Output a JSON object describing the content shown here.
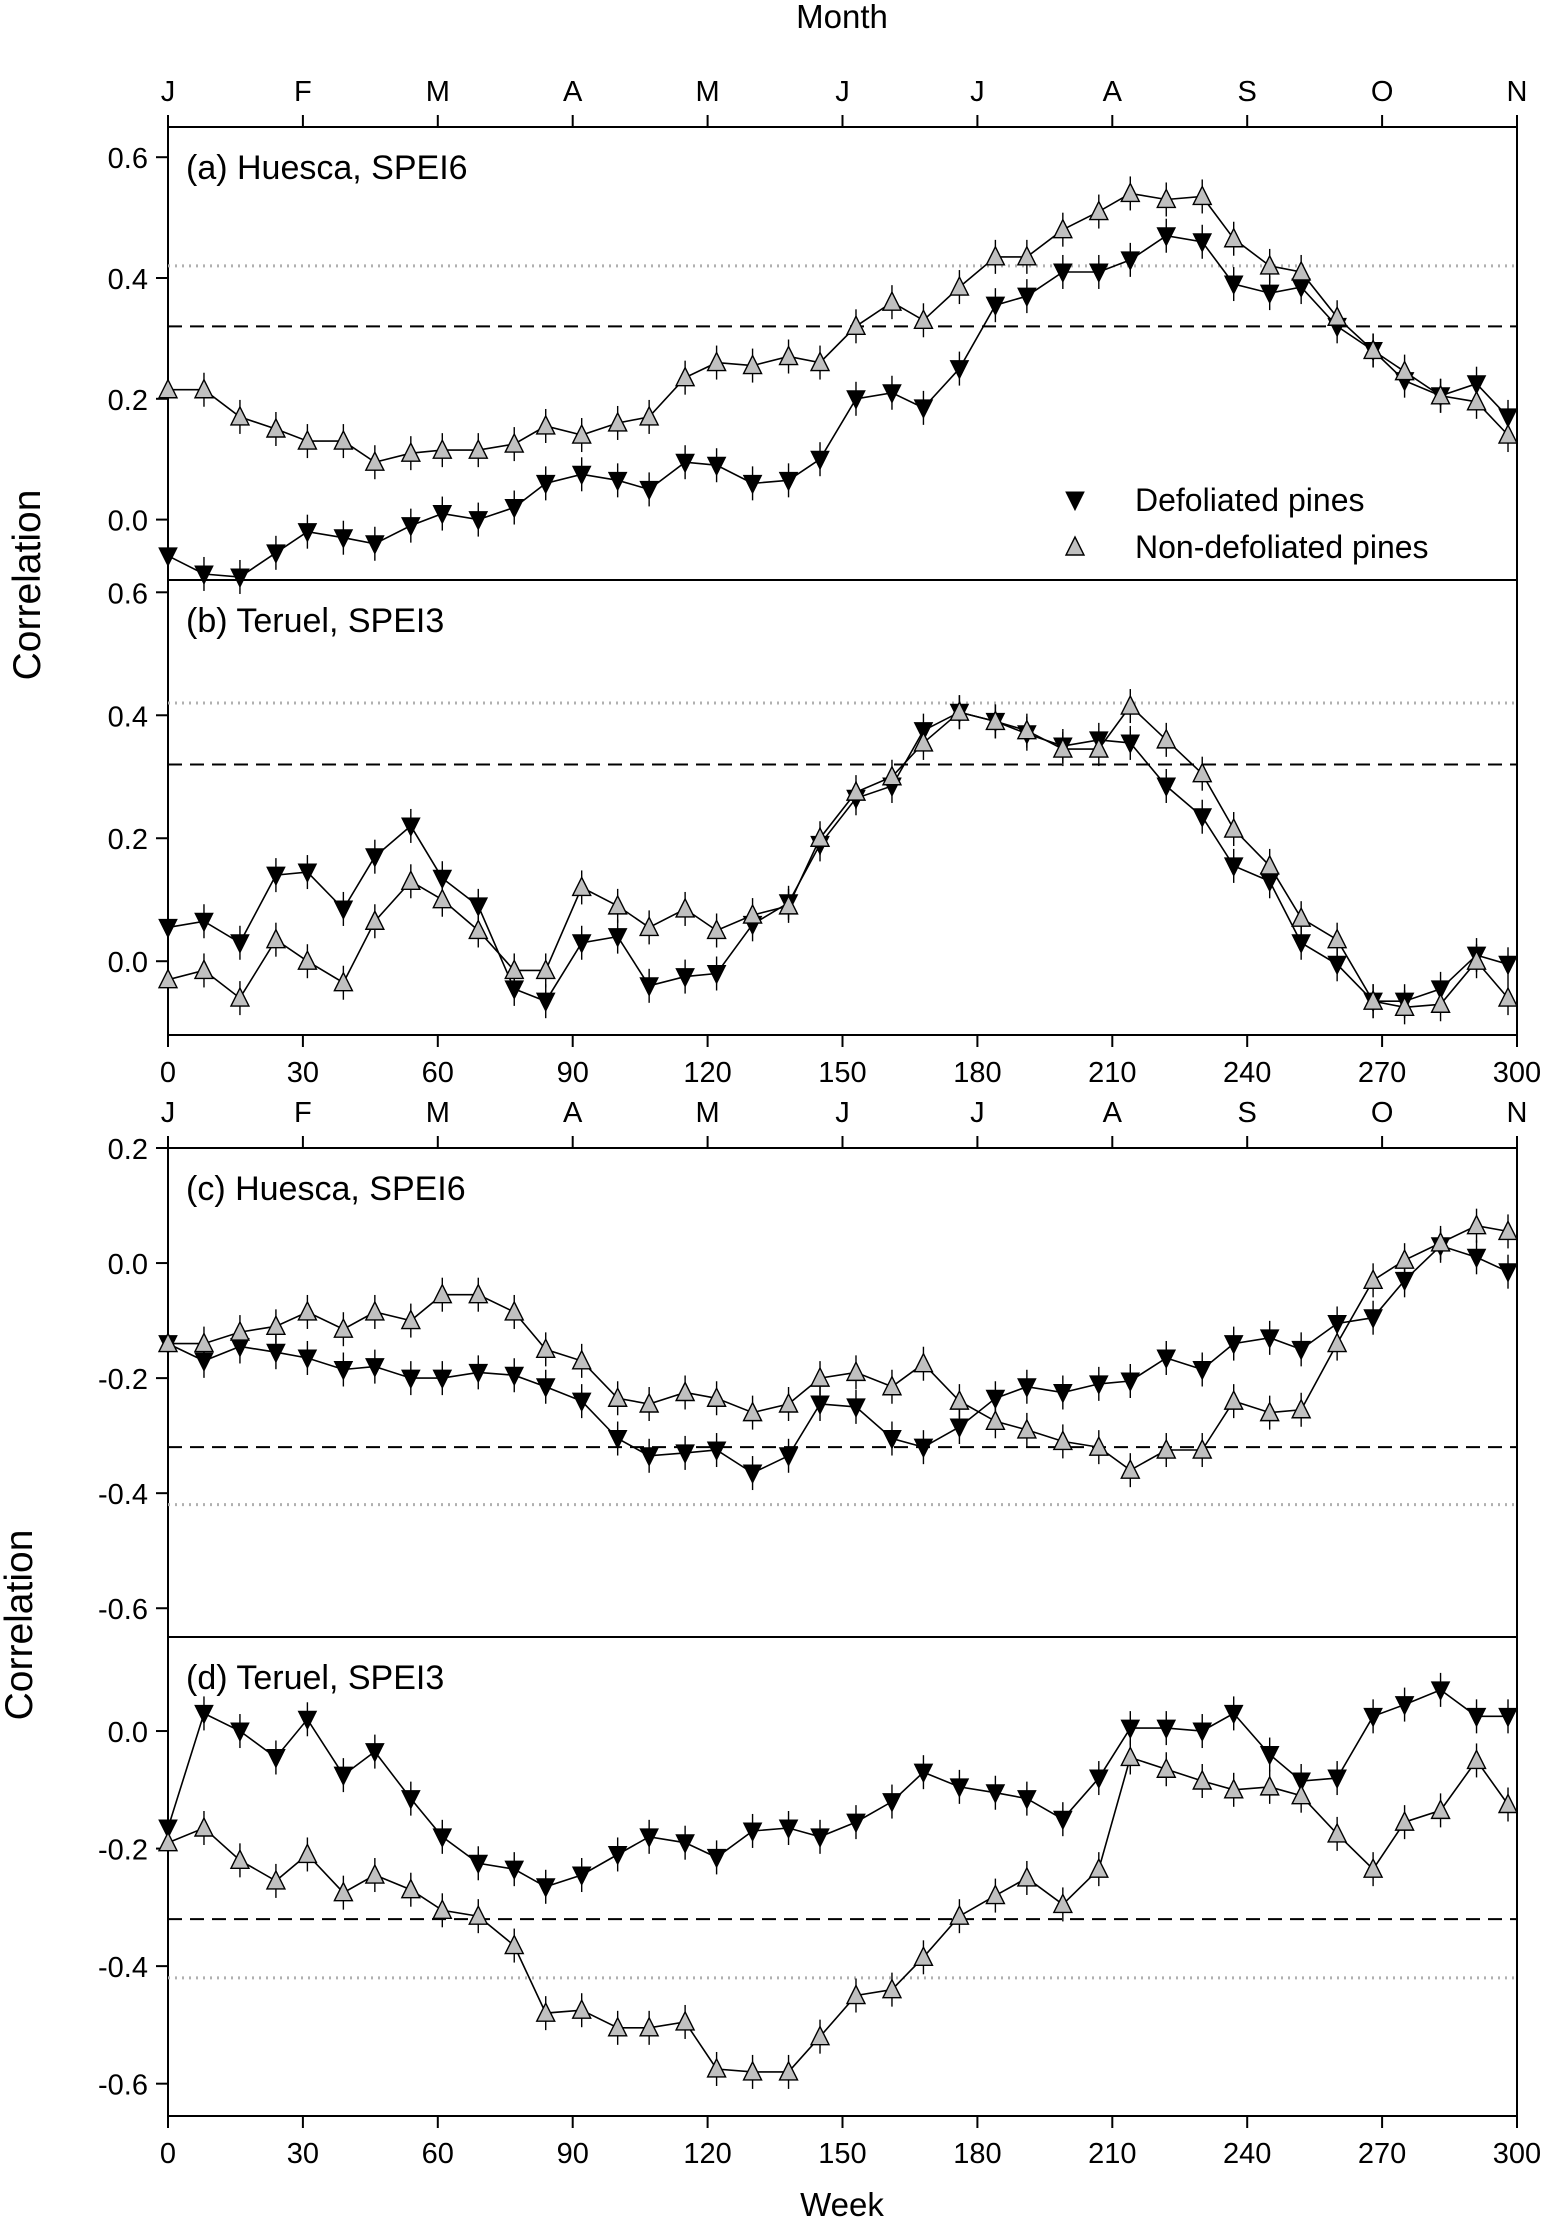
{
  "figure": {
    "month_axis_title": "Month",
    "week_axis_title": "Week",
    "month_labels": [
      "J",
      "F",
      "M",
      "A",
      "M",
      "J",
      "J",
      "A",
      "S",
      "O",
      "N"
    ],
    "week_ticks": [
      0,
      30,
      60,
      90,
      120,
      150,
      180,
      210,
      240,
      270,
      300
    ],
    "correlation_label": "Correlation",
    "legend": {
      "defoliated": "Defoliated pines",
      "non_defoliated": "Non-defoliated pines"
    },
    "colors": {
      "defoliated": "#000000",
      "non_defoliated": "#c0c0c0",
      "dashed": "#000000",
      "dotted": "#b0b0b0"
    }
  },
  "chart_data": [
    {
      "type": "line",
      "title": "(a) Huesca, SPEI6",
      "xlabel": "Week",
      "ylabel": "Correlation",
      "xlim": [
        0,
        300
      ],
      "ylim": [
        -0.1,
        0.65
      ],
      "yticks": [
        0.0,
        0.2,
        0.4,
        0.6
      ],
      "ytick_labels": [
        "0.0",
        "0.2",
        "0.4",
        "0.6"
      ],
      "ref_lines": {
        "dashed": 0.32,
        "dotted": 0.42
      },
      "x": [
        0,
        8,
        16,
        24,
        31,
        39,
        46,
        54,
        61,
        69,
        77,
        84,
        92,
        100,
        107,
        115,
        122,
        130,
        138,
        145,
        153,
        161,
        168,
        176,
        184,
        191,
        199,
        207,
        214,
        222,
        230,
        237,
        245,
        252,
        260,
        268,
        275,
        283,
        291,
        298
      ],
      "series": [
        {
          "name": "Defoliated pines",
          "values": [
            -0.06,
            -0.09,
            -0.095,
            -0.055,
            -0.02,
            -0.03,
            -0.04,
            -0.01,
            0.01,
            0.0,
            0.02,
            0.06,
            0.075,
            0.065,
            0.05,
            0.095,
            0.09,
            0.06,
            0.065,
            0.1,
            0.2,
            0.21,
            0.185,
            0.25,
            0.355,
            0.37,
            0.41,
            0.41,
            0.43,
            0.47,
            0.46,
            0.39,
            0.375,
            0.385,
            0.32,
            0.28,
            0.23,
            0.205,
            0.225,
            0.17
          ]
        },
        {
          "name": "Non-defoliated pines",
          "values": [
            0.215,
            0.215,
            0.17,
            0.15,
            0.13,
            0.13,
            0.095,
            0.11,
            0.115,
            0.115,
            0.125,
            0.155,
            0.14,
            0.16,
            0.17,
            0.235,
            0.26,
            0.255,
            0.27,
            0.26,
            0.32,
            0.36,
            0.33,
            0.385,
            0.435,
            0.435,
            0.48,
            0.51,
            0.54,
            0.53,
            0.535,
            0.465,
            0.42,
            0.41,
            0.335,
            0.28,
            0.245,
            0.205,
            0.195,
            0.14
          ]
        }
      ]
    },
    {
      "type": "line",
      "title": "(b) Teruel, SPEI3",
      "xlabel": "Week",
      "ylabel": "Correlation",
      "xlim": [
        0,
        300
      ],
      "ylim": [
        -0.12,
        0.62
      ],
      "yticks": [
        0.0,
        0.2,
        0.4,
        0.6
      ],
      "ytick_labels": [
        "0.0",
        "0.2",
        "0.4",
        "0.6"
      ],
      "ref_lines": {
        "dashed": 0.32,
        "dotted": 0.42
      },
      "x": [
        0,
        8,
        16,
        24,
        31,
        39,
        46,
        54,
        61,
        69,
        77,
        84,
        92,
        100,
        107,
        115,
        122,
        130,
        138,
        145,
        153,
        161,
        168,
        176,
        184,
        191,
        199,
        207,
        214,
        222,
        230,
        237,
        245,
        252,
        260,
        268,
        275,
        283,
        291,
        298
      ],
      "series": [
        {
          "name": "Defoliated pines",
          "values": [
            0.055,
            0.065,
            0.03,
            0.14,
            0.145,
            0.085,
            0.17,
            0.22,
            0.135,
            0.09,
            -0.045,
            -0.065,
            0.03,
            0.04,
            -0.04,
            -0.025,
            -0.02,
            0.06,
            0.095,
            0.19,
            0.265,
            0.285,
            0.375,
            0.405,
            0.39,
            0.37,
            0.35,
            0.36,
            0.355,
            0.285,
            0.235,
            0.155,
            0.13,
            0.03,
            -0.005,
            -0.065,
            -0.065,
            -0.045,
            0.01,
            -0.005
          ]
        },
        {
          "name": "Non-defoliated pines",
          "values": [
            -0.03,
            -0.015,
            -0.06,
            0.035,
            0.0,
            -0.035,
            0.065,
            0.13,
            0.1,
            0.05,
            -0.015,
            -0.015,
            0.12,
            0.09,
            0.055,
            0.085,
            0.05,
            0.075,
            0.09,
            0.2,
            0.275,
            0.3,
            0.355,
            0.405,
            0.39,
            0.375,
            0.345,
            0.345,
            0.415,
            0.36,
            0.305,
            0.215,
            0.155,
            0.07,
            0.035,
            -0.065,
            -0.075,
            -0.07,
            0.0,
            -0.06
          ]
        }
      ]
    },
    {
      "type": "line",
      "title": "(c) Huesca, SPEI6",
      "xlabel": "Week",
      "ylabel": "Correlation",
      "xlim": [
        0,
        300
      ],
      "ylim": [
        -0.65,
        0.2
      ],
      "yticks": [
        -0.6,
        -0.4,
        -0.2,
        0.0,
        0.2
      ],
      "ytick_labels": [
        "-0.6",
        "-0.4",
        "-0.2",
        "0.0",
        "0.2"
      ],
      "ref_lines": {
        "dashed": -0.32,
        "dotted": -0.42
      },
      "x": [
        0,
        8,
        16,
        24,
        31,
        39,
        46,
        54,
        61,
        69,
        77,
        84,
        92,
        100,
        107,
        115,
        122,
        130,
        138,
        145,
        153,
        161,
        168,
        176,
        184,
        191,
        199,
        207,
        214,
        222,
        230,
        237,
        245,
        252,
        260,
        268,
        275,
        283,
        291,
        298
      ],
      "series": [
        {
          "name": "Defoliated pines",
          "values": [
            -0.14,
            -0.17,
            -0.145,
            -0.155,
            -0.165,
            -0.185,
            -0.18,
            -0.2,
            -0.2,
            -0.19,
            -0.195,
            -0.215,
            -0.24,
            -0.305,
            -0.335,
            -0.33,
            -0.325,
            -0.365,
            -0.335,
            -0.245,
            -0.25,
            -0.305,
            -0.32,
            -0.285,
            -0.235,
            -0.215,
            -0.225,
            -0.21,
            -0.205,
            -0.165,
            -0.185,
            -0.14,
            -0.13,
            -0.15,
            -0.105,
            -0.095,
            -0.03,
            0.03,
            0.01,
            -0.015
          ]
        },
        {
          "name": "Non-defoliated pines",
          "values": [
            -0.14,
            -0.14,
            -0.12,
            -0.11,
            -0.085,
            -0.115,
            -0.085,
            -0.1,
            -0.055,
            -0.055,
            -0.085,
            -0.15,
            -0.17,
            -0.235,
            -0.245,
            -0.225,
            -0.235,
            -0.26,
            -0.245,
            -0.2,
            -0.19,
            -0.215,
            -0.175,
            -0.24,
            -0.275,
            -0.29,
            -0.31,
            -0.32,
            -0.36,
            -0.325,
            -0.325,
            -0.24,
            -0.26,
            -0.255,
            -0.14,
            -0.03,
            0.005,
            0.035,
            0.065,
            0.055
          ]
        }
      ]
    },
    {
      "type": "line",
      "title": "(d) Teruel, SPEI3",
      "xlabel": "Week",
      "ylabel": "Correlation",
      "xlim": [
        0,
        300
      ],
      "ylim": [
        -0.655,
        0.16
      ],
      "yticks": [
        -0.6,
        -0.4,
        -0.2,
        0.0
      ],
      "ytick_labels": [
        "-0.6",
        "-0.4",
        "-0.2",
        "0.0"
      ],
      "ref_lines": {
        "dashed": -0.32,
        "dotted": -0.42
      },
      "x": [
        0,
        8,
        16,
        24,
        31,
        39,
        46,
        54,
        61,
        69,
        77,
        84,
        92,
        100,
        107,
        115,
        122,
        130,
        138,
        145,
        153,
        161,
        168,
        176,
        184,
        191,
        199,
        207,
        214,
        222,
        230,
        237,
        245,
        252,
        260,
        268,
        275,
        283,
        291,
        298
      ],
      "series": [
        {
          "name": "Defoliated pines",
          "values": [
            -0.165,
            0.03,
            0.0,
            -0.045,
            0.02,
            -0.075,
            -0.035,
            -0.115,
            -0.18,
            -0.225,
            -0.235,
            -0.265,
            -0.245,
            -0.21,
            -0.18,
            -0.19,
            -0.215,
            -0.17,
            -0.165,
            -0.18,
            -0.155,
            -0.12,
            -0.07,
            -0.095,
            -0.105,
            -0.115,
            -0.15,
            -0.08,
            0.005,
            0.005,
            0.0,
            0.03,
            -0.04,
            -0.085,
            -0.08,
            0.025,
            0.045,
            0.07,
            0.025,
            0.025
          ]
        },
        {
          "name": "Non-defoliated pines",
          "values": [
            -0.19,
            -0.165,
            -0.22,
            -0.255,
            -0.21,
            -0.275,
            -0.245,
            -0.27,
            -0.305,
            -0.315,
            -0.365,
            -0.48,
            -0.475,
            -0.505,
            -0.505,
            -0.495,
            -0.575,
            -0.58,
            -0.58,
            -0.52,
            -0.45,
            -0.44,
            -0.385,
            -0.315,
            -0.28,
            -0.25,
            -0.295,
            -0.235,
            -0.045,
            -0.065,
            -0.085,
            -0.1,
            -0.095,
            -0.11,
            -0.175,
            -0.235,
            -0.155,
            -0.135,
            -0.05,
            -0.125
          ]
        }
      ]
    }
  ]
}
